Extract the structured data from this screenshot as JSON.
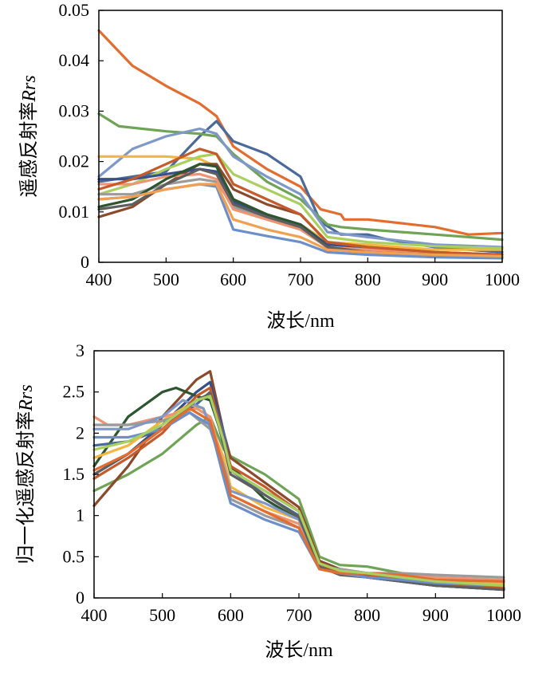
{
  "chart_data": [
    {
      "type": "line",
      "xlabel": "波长/nm",
      "ylabel": "遥感反射率",
      "ylabel_italic": "Rrs",
      "xlim": [
        400,
        1000
      ],
      "ylim": [
        0,
        0.05
      ],
      "xticks": [
        "400",
        "500",
        "600",
        "700",
        "800",
        "900",
        "1000"
      ],
      "yticks": [
        "0",
        "0.01",
        "0.02",
        "0.03",
        "0.04",
        "0.05"
      ],
      "grid": false,
      "series": [
        {
          "color": "#e36c2f",
          "x": [
            400,
            450,
            500,
            550,
            575,
            600,
            650,
            700,
            730,
            760,
            765,
            800,
            900,
            950,
            1000
          ],
          "y": [
            0.046,
            0.039,
            0.035,
            0.0315,
            0.029,
            0.023,
            0.0185,
            0.015,
            0.0105,
            0.0095,
            0.0085,
            0.0085,
            0.007,
            0.0055,
            0.0058
          ]
        },
        {
          "color": "#4a6a9c",
          "x": [
            400,
            450,
            500,
            550,
            575,
            600,
            650,
            700,
            730,
            760,
            800,
            830,
            900,
            1000
          ],
          "y": [
            0.016,
            0.017,
            0.018,
            0.025,
            0.028,
            0.024,
            0.0215,
            0.017,
            0.008,
            0.0055,
            0.0055,
            0.0045,
            0.003,
            0.002
          ]
        },
        {
          "color": "#6fa456",
          "x": [
            400,
            430,
            500,
            550,
            575,
            600,
            650,
            700,
            740,
            760,
            800,
            900,
            1000
          ],
          "y": [
            0.0295,
            0.027,
            0.026,
            0.0255,
            0.025,
            0.0215,
            0.016,
            0.0125,
            0.0075,
            0.007,
            0.0065,
            0.0055,
            0.0045
          ]
        },
        {
          "color": "#7f98c8",
          "x": [
            400,
            450,
            500,
            550,
            575,
            600,
            650,
            700,
            740,
            800,
            900,
            1000
          ],
          "y": [
            0.017,
            0.0225,
            0.025,
            0.0265,
            0.0255,
            0.021,
            0.017,
            0.0135,
            0.006,
            0.005,
            0.0035,
            0.003
          ]
        },
        {
          "color": "#f4b63f",
          "x": [
            400,
            450,
            500,
            550,
            575,
            600,
            650,
            700,
            740,
            800,
            900,
            1000
          ],
          "y": [
            0.021,
            0.021,
            0.021,
            0.0205,
            0.019,
            0.0125,
            0.0095,
            0.0075,
            0.004,
            0.0035,
            0.0025,
            0.0025
          ]
        },
        {
          "color": "#a9cf5e",
          "x": [
            400,
            450,
            500,
            550,
            575,
            600,
            650,
            700,
            740,
            800,
            900,
            1000
          ],
          "y": [
            0.0135,
            0.0155,
            0.0185,
            0.021,
            0.0215,
            0.0175,
            0.0145,
            0.0115,
            0.005,
            0.004,
            0.0032,
            0.0028
          ]
        },
        {
          "color": "#8a4a2b",
          "x": [
            400,
            450,
            500,
            550,
            575,
            600,
            650,
            700,
            740,
            800,
            900,
            1000
          ],
          "y": [
            0.009,
            0.011,
            0.0155,
            0.0195,
            0.0195,
            0.0145,
            0.0115,
            0.0095,
            0.004,
            0.003,
            0.002,
            0.0015
          ]
        },
        {
          "color": "#37508a",
          "x": [
            400,
            450,
            500,
            550,
            575,
            600,
            650,
            700,
            740,
            800,
            900,
            1000
          ],
          "y": [
            0.0165,
            0.0165,
            0.0175,
            0.0185,
            0.018,
            0.012,
            0.0095,
            0.0075,
            0.0035,
            0.0025,
            0.0018,
            0.0015
          ]
        },
        {
          "color": "#9b9b9b",
          "x": [
            400,
            450,
            500,
            550,
            575,
            600,
            650,
            700,
            740,
            800,
            900,
            1000
          ],
          "y": [
            0.0135,
            0.0135,
            0.0155,
            0.0165,
            0.016,
            0.011,
            0.0085,
            0.0065,
            0.003,
            0.0025,
            0.002,
            0.0015
          ]
        },
        {
          "color": "#ee9473",
          "x": [
            400,
            450,
            500,
            550,
            575,
            600,
            650,
            700,
            740,
            800,
            900,
            1000
          ],
          "y": [
            0.0155,
            0.0155,
            0.017,
            0.0175,
            0.0165,
            0.0105,
            0.0085,
            0.0065,
            0.003,
            0.0025,
            0.0018,
            0.0015
          ]
        },
        {
          "color": "#2c5530",
          "x": [
            400,
            450,
            500,
            550,
            575,
            600,
            650,
            700,
            740,
            800,
            900,
            1000
          ],
          "y": [
            0.011,
            0.0125,
            0.0165,
            0.0195,
            0.019,
            0.0125,
            0.0095,
            0.0075,
            0.003,
            0.002,
            0.0015,
            0.001
          ]
        },
        {
          "color": "#c55a2a",
          "x": [
            400,
            450,
            500,
            550,
            575,
            600,
            650,
            700,
            740,
            800,
            900,
            1000
          ],
          "y": [
            0.0145,
            0.0165,
            0.0195,
            0.0225,
            0.0215,
            0.0155,
            0.0125,
            0.0095,
            0.004,
            0.003,
            0.002,
            0.0015
          ]
        },
        {
          "color": "#5f5f5f",
          "x": [
            400,
            450,
            500,
            550,
            575,
            600,
            650,
            700,
            740,
            800,
            900,
            1000
          ],
          "y": [
            0.0105,
            0.0115,
            0.0155,
            0.0185,
            0.0175,
            0.0115,
            0.009,
            0.007,
            0.003,
            0.002,
            0.0015,
            0.001
          ]
        },
        {
          "color": "#6c8fc9",
          "x": [
            400,
            450,
            500,
            550,
            575,
            600,
            650,
            700,
            740,
            800,
            900,
            1000
          ],
          "y": [
            0.0125,
            0.013,
            0.0145,
            0.0155,
            0.015,
            0.0065,
            0.0052,
            0.004,
            0.002,
            0.0015,
            0.001,
            0.0008
          ]
        },
        {
          "color": "#f0a050",
          "x": [
            400,
            450,
            500,
            550,
            575,
            600,
            650,
            700,
            740,
            800,
            900,
            1000
          ],
          "y": [
            0.0125,
            0.013,
            0.0145,
            0.0155,
            0.0155,
            0.0085,
            0.0065,
            0.005,
            0.0025,
            0.002,
            0.0015,
            0.0012
          ]
        }
      ]
    },
    {
      "type": "line",
      "xlabel": "波长/nm",
      "ylabel": "归一化遥感反射率",
      "ylabel_italic": "Rrs",
      "xlim": [
        400,
        1000
      ],
      "ylim": [
        0,
        3
      ],
      "xticks": [
        "400",
        "500",
        "600",
        "700",
        "800",
        "900",
        "1000"
      ],
      "yticks": [
        "0",
        "0.5",
        "1",
        "1.5",
        "2",
        "2.5",
        "3"
      ],
      "grid": false,
      "series": [
        {
          "color": "#6fa456",
          "x": [
            400,
            450,
            500,
            550,
            570,
            590,
            600,
            650,
            700,
            730,
            760,
            800,
            850,
            900,
            1000
          ],
          "y": [
            1.3,
            1.5,
            1.75,
            2.1,
            2.2,
            1.8,
            1.72,
            1.5,
            1.2,
            0.5,
            0.4,
            0.38,
            0.3,
            0.2,
            0.12
          ]
        },
        {
          "color": "#8a4a2b",
          "x": [
            400,
            450,
            500,
            550,
            570,
            590,
            600,
            650,
            700,
            730,
            760,
            800,
            850,
            900,
            1000
          ],
          "y": [
            1.12,
            1.6,
            2.2,
            2.65,
            2.75,
            2.0,
            1.7,
            1.4,
            1.1,
            0.45,
            0.35,
            0.3,
            0.25,
            0.18,
            0.1
          ]
        },
        {
          "color": "#37508a",
          "x": [
            400,
            450,
            500,
            550,
            570,
            590,
            600,
            650,
            700,
            730,
            760,
            800,
            850,
            900,
            1000
          ],
          "y": [
            1.5,
            1.75,
            2.1,
            2.5,
            2.62,
            2.0,
            1.55,
            1.3,
            1.05,
            0.4,
            0.3,
            0.28,
            0.22,
            0.15,
            0.1
          ]
        },
        {
          "color": "#2c5530",
          "x": [
            400,
            450,
            500,
            520,
            550,
            570,
            590,
            600,
            650,
            700,
            730,
            760,
            800,
            850,
            900,
            1000
          ],
          "y": [
            1.6,
            2.2,
            2.5,
            2.55,
            2.45,
            2.4,
            1.9,
            1.6,
            1.2,
            0.95,
            0.4,
            0.3,
            0.25,
            0.2,
            0.15,
            0.12
          ]
        },
        {
          "color": "#4a6a9c",
          "x": [
            400,
            450,
            500,
            550,
            570,
            590,
            600,
            650,
            700,
            730,
            760,
            800,
            850,
            900,
            1000
          ],
          "y": [
            1.85,
            1.9,
            2.05,
            2.35,
            2.5,
            2.0,
            1.55,
            1.25,
            1.0,
            0.4,
            0.3,
            0.25,
            0.2,
            0.15,
            0.1
          ]
        },
        {
          "color": "#f4b63f",
          "x": [
            400,
            450,
            500,
            540,
            560,
            590,
            600,
            650,
            700,
            730,
            760,
            800,
            850,
            900,
            1000
          ],
          "y": [
            1.7,
            1.85,
            2.15,
            2.35,
            2.3,
            1.7,
            1.35,
            1.1,
            0.95,
            0.38,
            0.3,
            0.28,
            0.26,
            0.2,
            0.18
          ]
        },
        {
          "color": "#ee9473",
          "x": [
            400,
            420,
            450,
            500,
            550,
            570,
            590,
            600,
            650,
            700,
            730,
            760,
            800,
            850,
            900,
            1000
          ],
          "y": [
            2.2,
            2.1,
            2.1,
            2.2,
            2.3,
            2.2,
            1.6,
            1.25,
            1.05,
            0.9,
            0.4,
            0.32,
            0.3,
            0.28,
            0.25,
            0.22
          ]
        },
        {
          "color": "#9b9b9b",
          "x": [
            400,
            450,
            500,
            540,
            570,
            590,
            600,
            650,
            700,
            730,
            760,
            800,
            850,
            900,
            1000
          ],
          "y": [
            2.1,
            2.1,
            2.15,
            2.25,
            2.05,
            1.55,
            1.2,
            1.0,
            0.85,
            0.38,
            0.35,
            0.3,
            0.3,
            0.28,
            0.25
          ]
        },
        {
          "color": "#7f98c8",
          "x": [
            400,
            450,
            500,
            530,
            560,
            590,
            600,
            650,
            700,
            730,
            760,
            800,
            850,
            900,
            1000
          ],
          "y": [
            2.05,
            2.05,
            2.2,
            2.4,
            2.3,
            1.6,
            1.3,
            1.15,
            0.95,
            0.4,
            0.33,
            0.3,
            0.27,
            0.22,
            0.2
          ]
        },
        {
          "color": "#c55a2a",
          "x": [
            400,
            450,
            500,
            550,
            570,
            590,
            600,
            650,
            700,
            730,
            760,
            800,
            850,
            900,
            1000
          ],
          "y": [
            1.45,
            1.7,
            2.0,
            2.45,
            2.55,
            1.9,
            1.6,
            1.35,
            1.05,
            0.42,
            0.3,
            0.27,
            0.22,
            0.16,
            0.12
          ]
        },
        {
          "color": "#5f5f5f",
          "x": [
            400,
            450,
            500,
            550,
            570,
            590,
            600,
            650,
            700,
            730,
            760,
            800,
            850,
            900,
            1000
          ],
          "y": [
            1.5,
            1.75,
            2.05,
            2.4,
            2.48,
            1.85,
            1.5,
            1.25,
            0.98,
            0.38,
            0.28,
            0.25,
            0.2,
            0.15,
            0.1
          ]
        },
        {
          "color": "#6c8fc9",
          "x": [
            400,
            450,
            500,
            540,
            570,
            590,
            600,
            650,
            700,
            730,
            760,
            800,
            850,
            900,
            1000
          ],
          "y": [
            1.95,
            1.95,
            2.05,
            2.25,
            2.1,
            1.45,
            1.15,
            0.95,
            0.8,
            0.35,
            0.3,
            0.25,
            0.22,
            0.18,
            0.15
          ]
        },
        {
          "color": "#e36c2f",
          "x": [
            400,
            450,
            500,
            540,
            570,
            590,
            600,
            650,
            700,
            730,
            760,
            800,
            850,
            900,
            1000
          ],
          "y": [
            1.55,
            1.75,
            2.05,
            2.3,
            2.15,
            1.55,
            1.25,
            1.05,
            0.85,
            0.35,
            0.3,
            0.3,
            0.28,
            0.22,
            0.2
          ]
        },
        {
          "color": "#a9cf5e",
          "x": [
            400,
            450,
            500,
            550,
            570,
            590,
            600,
            650,
            700,
            730,
            760,
            800,
            850,
            900,
            1000
          ],
          "y": [
            1.8,
            1.9,
            2.1,
            2.4,
            2.45,
            1.9,
            1.55,
            1.3,
            1.05,
            0.42,
            0.33,
            0.3,
            0.25,
            0.2,
            0.15
          ]
        }
      ]
    }
  ]
}
